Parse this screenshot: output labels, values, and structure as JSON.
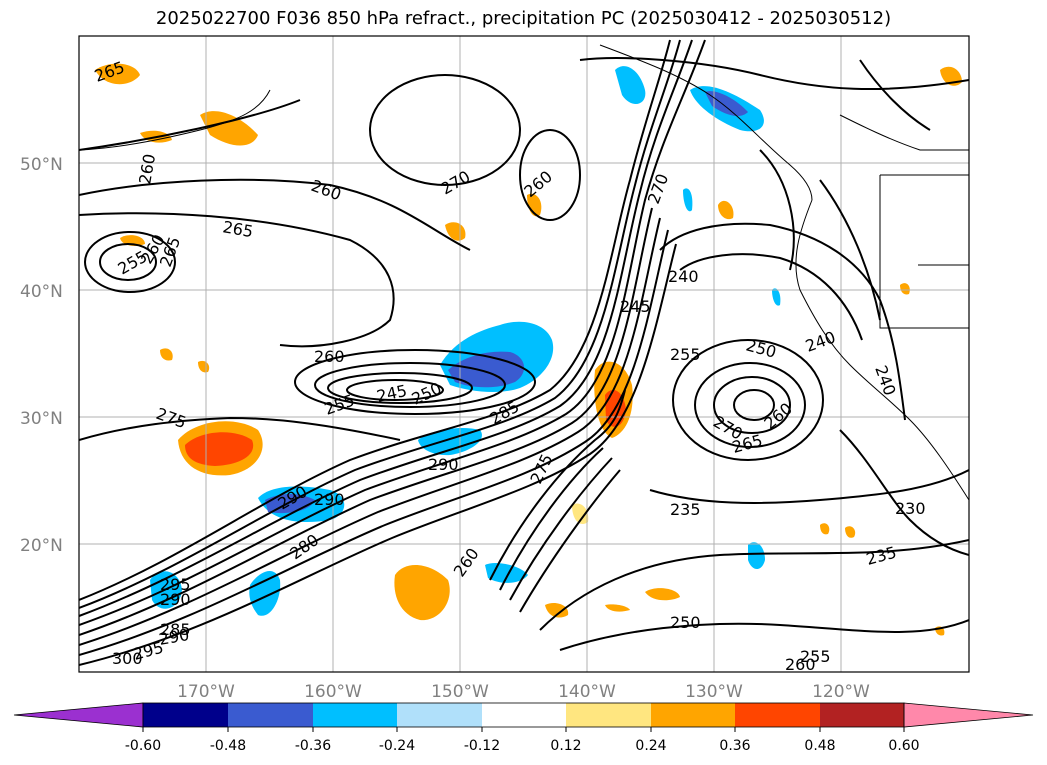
{
  "chart_data": {
    "type": "contour_map",
    "title": "2025022700 F036 850 hPa refract., precipitation PC (2025030412 - 2025030512)",
    "lat_ticks": [
      "20°N",
      "30°N",
      "40°N",
      "50°N"
    ],
    "lon_ticks": [
      "170°W",
      "160°W",
      "150°W",
      "140°W",
      "130°W",
      "120°W"
    ],
    "contour_labels": [
      "265",
      "260",
      "260",
      "270",
      "260",
      "265",
      "255",
      "260",
      "265",
      "260",
      "245",
      "250",
      "255",
      "275",
      "285",
      "290",
      "290",
      "290",
      "280",
      "295",
      "290",
      "285",
      "290",
      "295",
      "300",
      "260",
      "275",
      "245",
      "240",
      "270",
      "255",
      "250",
      "240",
      "265",
      "260",
      "270",
      "240",
      "235",
      "230",
      "235",
      "250",
      "255",
      "260"
    ],
    "colorbar": {
      "ticks": [
        "-0.60",
        "-0.48",
        "-0.36",
        "-0.24",
        "-0.12",
        "0.12",
        "0.24",
        "0.36",
        "0.48",
        "0.60"
      ],
      "colors": [
        "#9b30d0",
        "#00008b",
        "#3a5bd0",
        "#00bfff",
        "#b0e0fa",
        "#ffffff",
        "#ffe680",
        "#ffa500",
        "#ff4500",
        "#b22222",
        "#ff88aa"
      ],
      "extend": "both"
    }
  }
}
